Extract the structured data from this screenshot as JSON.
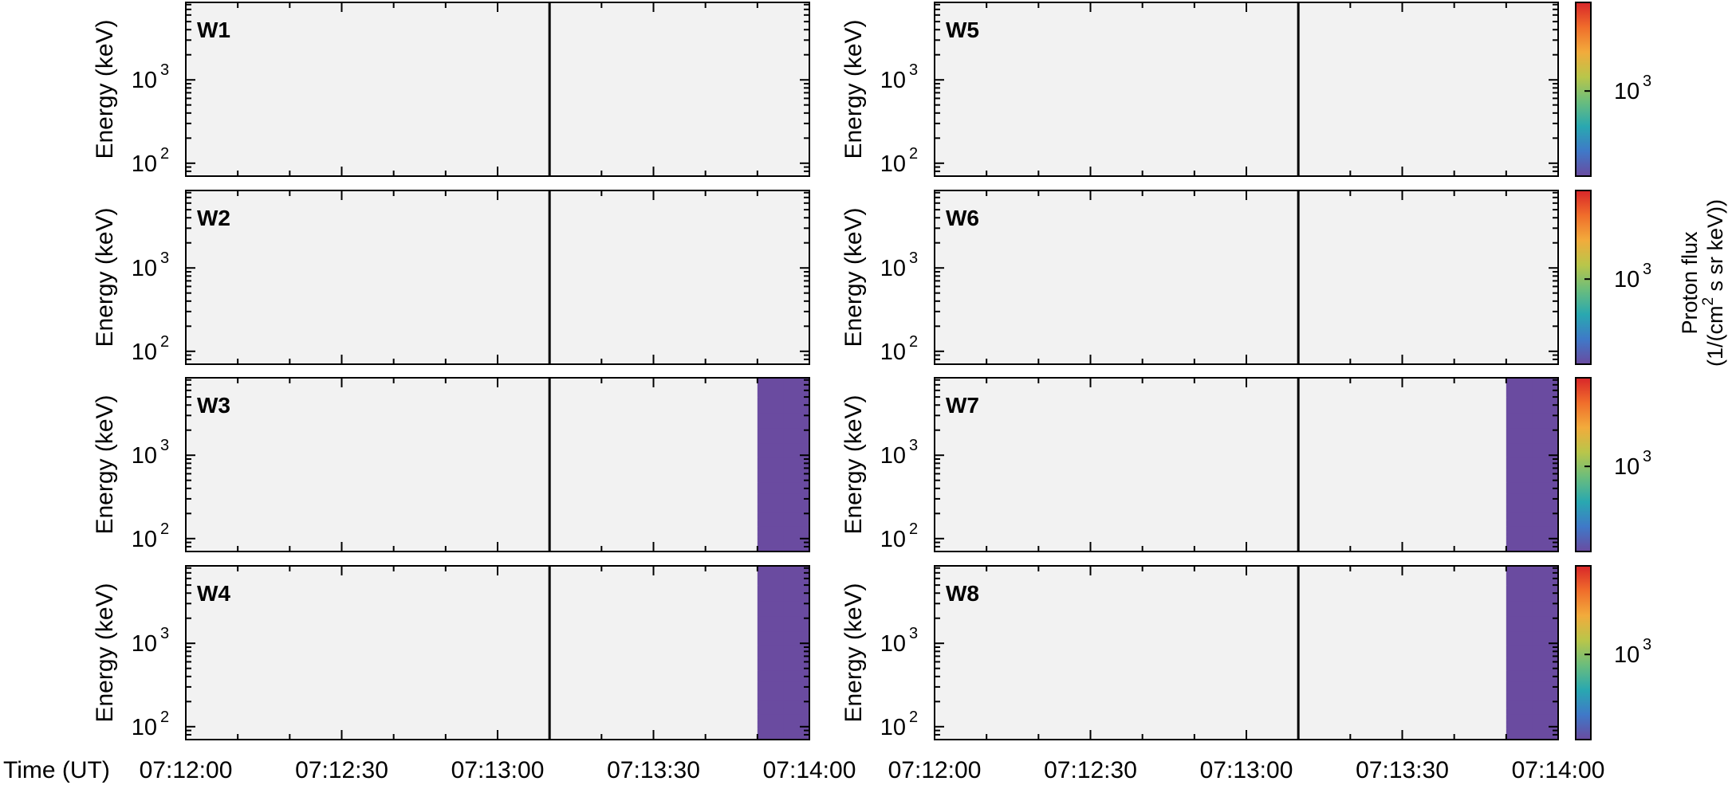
{
  "chart_data": {
    "type": "heatmap",
    "ylabel": "Energy (keV)",
    "y_scale": "log",
    "ylim": [
      70,
      8500
    ],
    "y_tick_labels": [
      {
        "base": "10",
        "exp": "2"
      },
      {
        "base": "10",
        "exp": "3"
      }
    ],
    "x_label": "Time (UT)",
    "x_ticks": [
      "07:12:00",
      "07:12:30",
      "07:13:00",
      "07:13:30",
      "07:14:00"
    ],
    "xlim": [
      "07:12:00",
      "07:14:00"
    ],
    "marker_time": "07:13:10",
    "colorbar": {
      "label_line1": "Proton flux",
      "label_line2_prefix": "(1/(cm",
      "label_line2_sup": "2",
      "label_line2_suffix": " s sr keV))",
      "tick_base": "10",
      "tick_exp": "3",
      "colormap": [
        "#6a4ba0",
        "#3f79c8",
        "#29a8b0",
        "#6bbd7c",
        "#b9c64a",
        "#f2ab3c",
        "#f06d2b",
        "#d8262a"
      ],
      "no_data_color": "#f2f2f2"
    },
    "energy_bins_keV": [
      70,
      80,
      90,
      100,
      115,
      130,
      155,
      185,
      230,
      300,
      400,
      560,
      800,
      1150,
      1700,
      2600,
      4000,
      6200
    ],
    "time_bin_seconds": 5,
    "panels": [
      {
        "label": "W1",
        "data_until": "07:12:46",
        "fluxmap": [
          "......................",
          "......................",
          "......................",
          "......................",
          "......................",
          "......................",
          "......................",
          "......................",
          "......................",
          "......................",
          "......................",
          "......................",
          "......................",
          "......................",
          "......................",
          "......................",
          "......................",
          "......................"
        ]
      },
      {
        "label": "W2",
        "data_until": "07:12:46",
        "fluxmap": [
          "......................",
          "......................",
          "......................",
          "......................",
          "......................",
          "......................",
          "......................",
          "......................",
          "......................",
          "......................",
          "......................",
          "......................",
          "......................",
          "......................",
          "......................",
          "......................",
          "......................",
          "......................"
        ]
      },
      {
        "label": "W3",
        "data_until": "07:14:00",
        "fluxmap": [
          "......................",
          "......................",
          "......................",
          "......................",
          "......................",
          "......................",
          "......................",
          "......................",
          "......................",
          "......................",
          "......................",
          "......................",
          "......................",
          "......................",
          "......................",
          "......................",
          "......................",
          "......................"
        ]
      },
      {
        "label": "W4",
        "data_until": "07:14:00",
        "fluxmap": [
          "......................",
          "......................",
          "......................",
          "......................",
          "......................",
          "......................",
          "......................",
          "......................",
          "......................",
          "......................",
          "......................",
          "......................",
          "......................",
          "......................",
          "......................",
          "......................",
          "......................",
          "......................"
        ]
      },
      {
        "label": "W5",
        "data_until": "07:12:46",
        "fluxmap": [
          "......................",
          "......................",
          "......................",
          "......................",
          "......................",
          "......................",
          "......................",
          "......................",
          "......................",
          "......................",
          "......................",
          "......................",
          "......................",
          "......................",
          "......................",
          "......................",
          "......................",
          "......................"
        ]
      },
      {
        "label": "W6",
        "data_until": "07:12:46",
        "fluxmap": [
          "......................",
          "......................",
          "......................",
          "......................",
          "......................",
          "......................",
          "......................",
          "......................",
          "......................",
          "......................",
          "......................",
          "......................",
          "......................",
          "......................",
          "......................",
          "......................",
          "......................",
          "......................"
        ]
      },
      {
        "label": "W7",
        "data_until": "07:14:00",
        "fluxmap": [
          "......................",
          "......................",
          "......................",
          "......................",
          "......................",
          "......................",
          "......................",
          "......................",
          "......................",
          "......................",
          "......................",
          "......................",
          "......................",
          "......................",
          "......................",
          "......................",
          "......................",
          "......................"
        ]
      },
      {
        "label": "W8",
        "data_until": "07:14:00",
        "fluxmap": [
          "......................",
          "......................",
          "......................",
          "......................",
          "......................",
          "......................",
          "......................",
          "......................",
          "......................",
          "......................",
          "......................",
          "......................",
          "......................",
          "......................",
          "......................",
          "......................",
          "......................",
          "......................"
        ]
      }
    ]
  }
}
